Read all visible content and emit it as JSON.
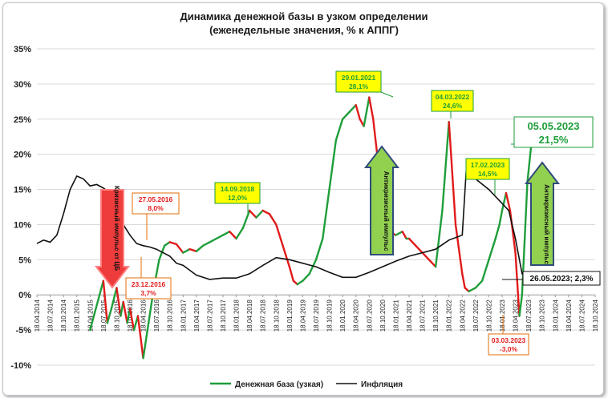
{
  "chart_data": {
    "type": "line",
    "title": "Динамика денежной базы в узком определении",
    "subtitle": "(еженедельные значения, % к АППГ)",
    "ylabel": "",
    "ylim": [
      -10,
      35
    ],
    "yticks": [
      "35%",
      "30%",
      "25%",
      "20%",
      "15%",
      "10%",
      "5%",
      "0%",
      "-5%",
      "-10%"
    ],
    "xticks": [
      "18.04.2014",
      "18.07.2014",
      "18.10.2014",
      "18.01.2015",
      "18.04.2015",
      "18.07.2015",
      "18.10.2015",
      "18.01.2016",
      "18.04.2016",
      "18.07.2016",
      "18.10.2016",
      "18.01.2017",
      "18.04.2017",
      "18.07.2017",
      "18.10.2017",
      "18.01.2018",
      "18.04.2018",
      "18.07.2018",
      "18.10.2018",
      "18.01.2019",
      "18.04.2019",
      "18.07.2019",
      "18.10.2019",
      "18.01.2020",
      "18.04.2020",
      "18.07.2020",
      "18.10.2020",
      "18.01.2021",
      "18.04.2021",
      "18.07.2021",
      "18.10.2021",
      "18.01.2022",
      "18.04.2022",
      "18.07.2022",
      "18.10.2022",
      "18.01.2023",
      "18.04.2023",
      "18.07.2023",
      "18.10.2023",
      "18.01.2024",
      "18.04.2024",
      "18.07.2024",
      "18.10.2024"
    ],
    "legend_position": "bottom",
    "series": [
      {
        "name": "Денежная база (узкая)",
        "color_up": "#1f9e3a",
        "color_down": "#e11b1b",
        "t": [
          4,
          5,
          5.3,
          5.6,
          6,
          6.3,
          6.5,
          6.8,
          7,
          7.3,
          7.6,
          8,
          8.4,
          8.8,
          9.2,
          9.6,
          10,
          10.5,
          11,
          11.5,
          12,
          12.5,
          13,
          13.5,
          14,
          14.5,
          15,
          15.5,
          16,
          16.5,
          17,
          17.5,
          18,
          18.5,
          19,
          19.3,
          19.6,
          20,
          20.5,
          21,
          21.5,
          22,
          22.5,
          23,
          23.5,
          24,
          24.3,
          24.6,
          25,
          25.3,
          25.6,
          26,
          26.5,
          27,
          27.5,
          27.8,
          28,
          28.5,
          29,
          29.5,
          30,
          30.5,
          31,
          31.5,
          32,
          32.2,
          32.5,
          33,
          33.5,
          34,
          34.5,
          34.8,
          35,
          35.3,
          35.6,
          36,
          36.3,
          36.5,
          36.7,
          36.9,
          37.2
        ],
        "values": [
          -5,
          2,
          -4,
          -2,
          1,
          -3,
          -1,
          -4,
          -2,
          -5,
          -3,
          -9,
          -4,
          1,
          5,
          7,
          7.5,
          7.2,
          6,
          6.5,
          6.2,
          7,
          7.5,
          8,
          8.5,
          9,
          8,
          9.5,
          12,
          11,
          12,
          11.5,
          10,
          7,
          4,
          2,
          1.5,
          2,
          3,
          5,
          8,
          15,
          22,
          25,
          26,
          27,
          25,
          24,
          28.1,
          25,
          20,
          12,
          9,
          8.5,
          9,
          8,
          8,
          7,
          6,
          5,
          4,
          12,
          24.6,
          10,
          3,
          1,
          0.5,
          1,
          2,
          5,
          8,
          10,
          12,
          14.5,
          12,
          6,
          -3,
          0,
          8,
          16,
          21.5
        ]
      },
      {
        "name": "Инфляция",
        "color": "#111111",
        "t": [
          0,
          0.5,
          1,
          1.5,
          2,
          2.5,
          3,
          3.5,
          4,
          4.5,
          5,
          5.5,
          6,
          6.5,
          7,
          7.5,
          8,
          8.5,
          9,
          9.5,
          10,
          10.5,
          11,
          11.5,
          12,
          12.5,
          13,
          14,
          15,
          16,
          17,
          18,
          19,
          20,
          21,
          22,
          23,
          24,
          25,
          26,
          27,
          28,
          29,
          30,
          31,
          32,
          32.3,
          33,
          34,
          35,
          35.5,
          36,
          36.5,
          37,
          37.5,
          38,
          38.5,
          39
        ],
        "values": [
          7.3,
          7.8,
          7.5,
          8.5,
          11.5,
          15,
          16.9,
          16.5,
          15.5,
          15.7,
          15.2,
          14.5,
          13,
          10,
          8.5,
          7.3,
          7,
          6.8,
          6.5,
          6,
          5.5,
          4.5,
          4.2,
          3.5,
          2.8,
          2.5,
          2.2,
          2.4,
          2.4,
          3,
          4.2,
          5.3,
          5,
          4.5,
          4,
          3.2,
          2.5,
          2.5,
          3.2,
          4,
          4.8,
          5.5,
          6,
          6.5,
          7.8,
          8.5,
          17.8,
          16.5,
          15,
          13,
          12,
          8,
          3,
          2.5,
          2.3,
          2.3,
          2.3,
          2.3
        ]
      }
    ],
    "annotations": [
      {
        "text_date": "27.05.2016",
        "text_value": "8,0%",
        "style": "red"
      },
      {
        "text_date": "23.12.2016",
        "text_value": "3,7%",
        "style": "red"
      },
      {
        "text_date": "14.09.2018",
        "text_value": "12,0%",
        "style": "green"
      },
      {
        "text_date": "29.01.2021",
        "text_value": "28,1%",
        "style": "green"
      },
      {
        "text_date": "04.03.2022",
        "text_value": "24,6%",
        "style": "green"
      },
      {
        "text_date": "17.02.2023",
        "text_value": "14,5%",
        "style": "green"
      },
      {
        "text_date": "05.05.2023",
        "text_value": "21,5%",
        "style": "green-big"
      },
      {
        "text_date": "03.03.2023",
        "text_value": "-3,0%",
        "style": "red"
      },
      {
        "text_single": "26.05.2023; 2,3%",
        "style": "black"
      }
    ],
    "arrows": {
      "crisis": "Кризисный импульс от ЦБ",
      "anticrisis1": "Антикризисный импульс",
      "anticrisis2": "Антикризисный импульс"
    }
  }
}
